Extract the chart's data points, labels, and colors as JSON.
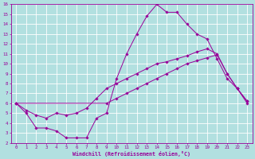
{
  "xlabel": "Windchill (Refroidissement éolien,°C)",
  "bg_color": "#b2e0e0",
  "grid_color": "#ffffff",
  "line_color": "#990099",
  "xlim": [
    -0.5,
    23.5
  ],
  "ylim": [
    2,
    16
  ],
  "xticks": [
    0,
    1,
    2,
    3,
    4,
    5,
    6,
    7,
    8,
    9,
    10,
    11,
    12,
    13,
    14,
    15,
    16,
    17,
    18,
    19,
    20,
    21,
    22,
    23
  ],
  "yticks": [
    2,
    3,
    4,
    5,
    6,
    7,
    8,
    9,
    10,
    11,
    12,
    13,
    14,
    15,
    16
  ],
  "curve1_x": [
    0,
    1,
    2,
    3,
    4,
    5,
    6,
    7,
    8,
    9,
    10,
    11,
    12,
    13,
    14,
    15,
    16,
    17,
    18,
    19,
    20,
    21,
    22,
    23
  ],
  "curve1_y": [
    6.0,
    5.0,
    3.5,
    3.5,
    3.2,
    2.5,
    2.5,
    2.5,
    4.5,
    5.0,
    8.5,
    11.0,
    13.0,
    14.8,
    16.0,
    15.2,
    15.2,
    14.0,
    13.0,
    12.5,
    10.5,
    8.5,
    7.5,
    6.0
  ],
  "curve2_x": [
    0,
    1,
    2,
    3,
    4,
    5,
    6,
    7,
    8,
    9,
    10,
    11,
    12,
    13,
    14,
    15,
    16,
    17,
    18,
    19,
    20,
    21,
    22,
    23
  ],
  "curve2_y": [
    6.0,
    5.3,
    4.8,
    4.5,
    5.0,
    4.8,
    5.0,
    5.5,
    6.5,
    7.5,
    8.0,
    8.5,
    9.0,
    9.5,
    10.0,
    10.2,
    10.5,
    10.8,
    11.2,
    11.5,
    11.0,
    9.0,
    7.5,
    6.2
  ],
  "curve3_x": [
    0,
    9,
    10,
    11,
    12,
    13,
    14,
    15,
    16,
    17,
    18,
    19,
    20,
    21,
    22,
    23
  ],
  "curve3_y": [
    6.0,
    6.0,
    6.5,
    7.0,
    7.5,
    8.0,
    8.5,
    9.0,
    9.5,
    10.0,
    10.3,
    10.6,
    10.9,
    9.0,
    7.5,
    6.2
  ]
}
